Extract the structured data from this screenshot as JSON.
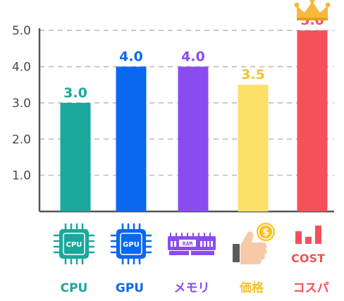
{
  "chart_data": {
    "type": "bar",
    "categories": [
      "CPU",
      "GPU",
      "メモリ",
      "価格",
      "コスパ"
    ],
    "values": [
      3.0,
      4.0,
      4.0,
      3.5,
      5.0
    ],
    "value_labels": [
      "3.0",
      "4.0",
      "4.0",
      "3.5",
      "5.0"
    ],
    "yticks": [
      "1.0",
      "2.0",
      "3.0",
      "4.0",
      "5.0"
    ],
    "ylim": [
      0,
      5.5
    ],
    "grid": true,
    "colors": [
      "#1aa89c",
      "#0a68f0",
      "#8a4cf0",
      "#fde06a",
      "#f4515a"
    ],
    "label_colors": [
      "#1aa89c",
      "#0a68f0",
      "#8a4cf0",
      "#f2c233",
      "#f4515a"
    ],
    "icons": [
      "cpu-chip-icon",
      "gpu-chip-icon",
      "ram-module-icon",
      "thumbs-up-coin-icon",
      "cost-bars-icon"
    ],
    "icon_texts": {
      "cpu": "CPU",
      "gpu": "GPU",
      "ram": "RAM",
      "coin": "$",
      "cost": "COST"
    },
    "highlight_icon": "crown-icon"
  }
}
